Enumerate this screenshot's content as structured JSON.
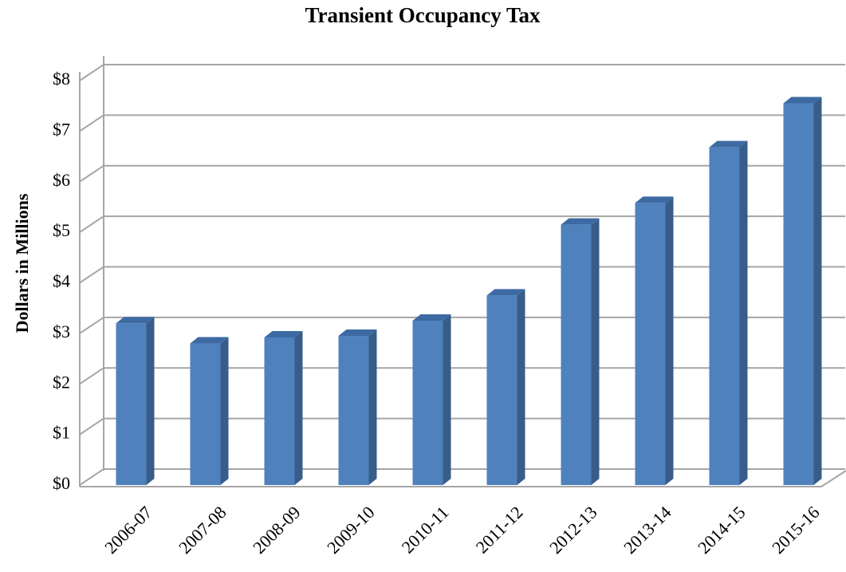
{
  "chart_data": {
    "type": "bar3d",
    "title": "Transient Occupancy Tax",
    "y_label": "Dollars in Millions",
    "categories": [
      "2006-07",
      "2007-08",
      "2008-09",
      "2009-10",
      "2010-11",
      "2011-12",
      "2012-13",
      "2013-14",
      "2014-15",
      "2015-16"
    ],
    "values": [
      3.2,
      2.8,
      2.92,
      2.95,
      3.25,
      3.75,
      5.15,
      5.58,
      6.68,
      7.55
    ],
    "color": "#4f81bd",
    "ylim": [
      0,
      8
    ],
    "yticks": [
      {
        "value": 0,
        "label": "$0"
      },
      {
        "value": 1,
        "label": "$1"
      },
      {
        "value": 2,
        "label": "$2"
      },
      {
        "value": 3,
        "label": "$3"
      },
      {
        "value": 4,
        "label": "$4"
      },
      {
        "value": 5,
        "label": "$5"
      },
      {
        "value": 6,
        "label": "$6"
      },
      {
        "value": 7,
        "label": "$7"
      },
      {
        "value": 8,
        "label": "$8"
      }
    ],
    "grid": true
  }
}
